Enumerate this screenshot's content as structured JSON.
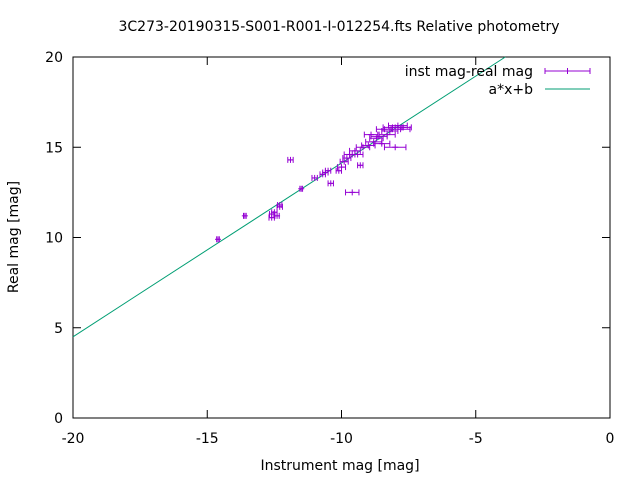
{
  "chart_data": {
    "type": "scatter",
    "title": "3C273-20190315-S001-R001-I-012254.fts Relative photometry",
    "xlabel": "Instrument mag [mag]",
    "ylabel": "Real mag [mag]",
    "xlim": [
      -20,
      0
    ],
    "ylim": [
      0,
      20
    ],
    "xticks": [
      -20,
      -15,
      -10,
      -5,
      0
    ],
    "yticks": [
      0,
      5,
      10,
      15,
      20
    ],
    "xtick_labels": [
      "-20",
      "-15",
      "-10",
      "-5",
      "0"
    ],
    "ytick_labels": [
      "0",
      "5",
      "10",
      "15",
      "20"
    ],
    "grid": false,
    "legend_position": "top-right",
    "colors": {
      "points": "#9400d3",
      "fit": "#009e73",
      "axes": "#000000"
    },
    "series": [
      {
        "name": "inst mag-real mag",
        "kind": "points-errorbars",
        "points": [
          {
            "x": -14.6,
            "y": 9.9,
            "xerr": 0.05
          },
          {
            "x": -13.6,
            "y": 11.2,
            "xerr": 0.05
          },
          {
            "x": -12.6,
            "y": 11.1,
            "xerr": 0.1
          },
          {
            "x": -12.6,
            "y": 11.3,
            "xerr": 0.08
          },
          {
            "x": -12.5,
            "y": 11.4,
            "xerr": 0.1
          },
          {
            "x": -12.4,
            "y": 11.2,
            "xerr": 0.08
          },
          {
            "x": -12.3,
            "y": 11.7,
            "xerr": 0.1
          },
          {
            "x": -12.3,
            "y": 11.8,
            "xerr": 0.08
          },
          {
            "x": -11.9,
            "y": 14.3,
            "xerr": 0.1
          },
          {
            "x": -11.5,
            "y": 12.7,
            "xerr": 0.05
          },
          {
            "x": -11.0,
            "y": 13.3,
            "xerr": 0.1
          },
          {
            "x": -10.7,
            "y": 13.5,
            "xerr": 0.1
          },
          {
            "x": -10.6,
            "y": 13.6,
            "xerr": 0.1
          },
          {
            "x": -10.5,
            "y": 13.7,
            "xerr": 0.1
          },
          {
            "x": -10.4,
            "y": 13.0,
            "xerr": 0.1
          },
          {
            "x": -10.1,
            "y": 13.7,
            "xerr": 0.1
          },
          {
            "x": -10.0,
            "y": 13.9,
            "xerr": 0.15
          },
          {
            "x": -9.9,
            "y": 14.2,
            "xerr": 0.15
          },
          {
            "x": -9.8,
            "y": 14.4,
            "xerr": 0.15
          },
          {
            "x": -9.7,
            "y": 14.6,
            "xerr": 0.2
          },
          {
            "x": -9.6,
            "y": 12.5,
            "xerr": 0.25
          },
          {
            "x": -9.5,
            "y": 14.8,
            "xerr": 0.2
          },
          {
            "x": -9.4,
            "y": 14.6,
            "xerr": 0.2
          },
          {
            "x": -9.3,
            "y": 14.0,
            "xerr": 0.1
          },
          {
            "x": -9.2,
            "y": 15.0,
            "xerr": 0.25
          },
          {
            "x": -9.0,
            "y": 15.1,
            "xerr": 0.25
          },
          {
            "x": -8.9,
            "y": 15.7,
            "xerr": 0.25
          },
          {
            "x": -8.8,
            "y": 15.3,
            "xerr": 0.3
          },
          {
            "x": -8.7,
            "y": 15.5,
            "xerr": 0.25
          },
          {
            "x": -8.6,
            "y": 15.6,
            "xerr": 0.3
          },
          {
            "x": -8.5,
            "y": 15.2,
            "xerr": 0.3
          },
          {
            "x": -8.4,
            "y": 16.0,
            "xerr": 0.3
          },
          {
            "x": -8.3,
            "y": 15.7,
            "xerr": 0.3
          },
          {
            "x": -8.2,
            "y": 15.9,
            "xerr": 0.3
          },
          {
            "x": -8.1,
            "y": 16.1,
            "xerr": 0.35
          },
          {
            "x": -8.0,
            "y": 15.0,
            "xerr": 0.4
          },
          {
            "x": -7.9,
            "y": 16.2,
            "xerr": 0.35
          },
          {
            "x": -7.8,
            "y": 16.0,
            "xerr": 0.35
          },
          {
            "x": -7.7,
            "y": 16.1,
            "xerr": 0.3
          }
        ]
      },
      {
        "name": "a*x+b",
        "kind": "line",
        "x": [
          -20,
          -3.9
        ],
        "y": [
          4.5,
          20
        ]
      }
    ]
  }
}
